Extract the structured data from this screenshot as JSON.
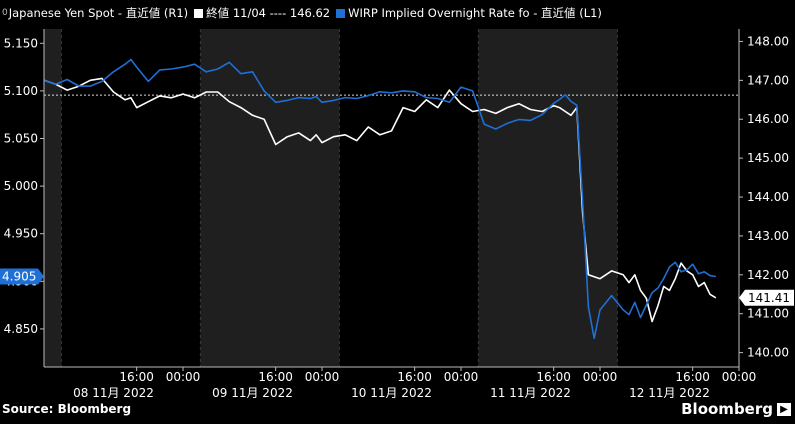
{
  "legend": {
    "marker": "0",
    "series1_label": "Japanese Yen Spot - 直近値 (R1)",
    "series2_label": "終値 11/04 ---- 146.62",
    "series3_label": "WIRP Implied Overnight Rate fo - 直近値 (L1)"
  },
  "footer": {
    "source": "Source: Bloomberg",
    "brand": "Bloomberg",
    "brand_icon": "play-icon"
  },
  "colors": {
    "yen": "#ffffff",
    "wirp": "#1e6fd6",
    "background": "#000000",
    "session_band": "#1f1f1f"
  },
  "chart_data": {
    "type": "line",
    "x_unit": "hours since 08 11月 2022 00:00 (Tokyo)",
    "xlim": [
      0,
      120
    ],
    "x_tick_labels": [
      {
        "x": 16,
        "label": "16:00"
      },
      {
        "x": 24,
        "label": "00:00"
      },
      {
        "x": 40,
        "label": "16:00"
      },
      {
        "x": 48,
        "label": "00:00"
      },
      {
        "x": 64,
        "label": "16:00"
      },
      {
        "x": 72,
        "label": "00:00"
      },
      {
        "x": 88,
        "label": "16:00"
      },
      {
        "x": 96,
        "label": "00:00"
      },
      {
        "x": 112,
        "label": "16:00"
      },
      {
        "x": 120,
        "label": "00:00"
      }
    ],
    "day_labels": [
      {
        "x": 12,
        "label": "08 11月 2022"
      },
      {
        "x": 36,
        "label": "09 11月 2022"
      },
      {
        "x": 60,
        "label": "10 11月 2022"
      },
      {
        "x": 84,
        "label": "11 11月 2022"
      },
      {
        "x": 108,
        "label": "12 11月 2022"
      }
    ],
    "session_bands": [
      [
        0,
        3
      ],
      [
        27,
        51
      ],
      [
        75,
        99
      ],
      [
        123,
        124
      ]
    ],
    "left_axis": {
      "ylim": [
        4.81,
        5.165
      ],
      "ticks": [
        5.15,
        5.1,
        5.05,
        5.0,
        4.95,
        4.9,
        4.85
      ],
      "tick_labels": [
        "5.150",
        "5.100",
        "5.050",
        "5.000",
        "4.950",
        "4.900",
        "4.850"
      ],
      "last_value": "4.905",
      "last_value_at": 4.905
    },
    "right_axis": {
      "ylim": [
        139.63,
        148.32
      ],
      "ticks": [
        148,
        147,
        146,
        145,
        144,
        143,
        142,
        141,
        140
      ],
      "tick_labels": [
        "148.00",
        "147.00",
        "146.00",
        "145.00",
        "144.00",
        "143.00",
        "142.00",
        "141.00",
        "140.00"
      ],
      "last_value": "141.41",
      "last_value_at": 141.41
    },
    "reference_line": {
      "axis": "right",
      "value": 146.62,
      "label": "終値 11/04"
    },
    "series": [
      {
        "axis": "right",
        "color": "#ffffff",
        "x": [
          0,
          2,
          4,
          6,
          8,
          10,
          12,
          14,
          15,
          16,
          18,
          20,
          22,
          24,
          26,
          28,
          30,
          32,
          34,
          36,
          38,
          40,
          42,
          44,
          46,
          47,
          48,
          50,
          52,
          54,
          56,
          58,
          60,
          62,
          64,
          66,
          68,
          70,
          72,
          74,
          76,
          78,
          80,
          82,
          84,
          86,
          88,
          89,
          90,
          91,
          92,
          93,
          94,
          96,
          98,
          100,
          101,
          102,
          103,
          104,
          105,
          106,
          107,
          108,
          109,
          110,
          111,
          112,
          113,
          114,
          115,
          116
        ],
        "y": [
          147.0,
          146.9,
          146.75,
          146.85,
          147.0,
          147.05,
          146.7,
          146.5,
          146.55,
          146.3,
          146.45,
          146.6,
          146.55,
          146.65,
          146.55,
          146.7,
          146.7,
          146.45,
          146.3,
          146.1,
          146.0,
          145.35,
          145.55,
          145.65,
          145.45,
          145.6,
          145.4,
          145.55,
          145.6,
          145.45,
          145.8,
          145.6,
          145.7,
          146.3,
          146.2,
          146.5,
          146.3,
          146.75,
          146.4,
          146.2,
          146.25,
          146.15,
          146.3,
          146.4,
          146.25,
          146.2,
          146.35,
          146.3,
          146.2,
          146.1,
          146.3,
          143.6,
          142.0,
          141.9,
          142.1,
          142.0,
          141.8,
          142.0,
          141.6,
          141.4,
          140.8,
          141.2,
          141.7,
          141.6,
          141.9,
          142.3,
          142.1,
          142.0,
          141.7,
          141.8,
          141.5,
          141.41
        ]
      },
      {
        "axis": "left",
        "color": "#1e6fd6",
        "x": [
          0,
          2,
          4,
          6,
          8,
          10,
          12,
          14,
          15,
          16,
          18,
          20,
          22,
          24,
          26,
          28,
          30,
          32,
          34,
          36,
          38,
          40,
          42,
          44,
          46,
          47,
          48,
          50,
          52,
          54,
          56,
          58,
          60,
          62,
          64,
          66,
          68,
          70,
          72,
          74,
          76,
          78,
          80,
          82,
          84,
          86,
          88,
          89,
          90,
          91,
          92,
          93,
          94,
          95,
          96,
          98,
          100,
          101,
          102,
          103,
          104,
          105,
          106,
          107,
          108,
          109,
          110,
          111,
          112,
          113,
          114,
          115,
          116
        ],
        "y": [
          5.111,
          5.107,
          5.112,
          5.105,
          5.105,
          5.11,
          5.12,
          5.128,
          5.133,
          5.125,
          5.11,
          5.122,
          5.123,
          5.125,
          5.128,
          5.12,
          5.123,
          5.13,
          5.118,
          5.12,
          5.1,
          5.088,
          5.09,
          5.093,
          5.092,
          5.094,
          5.088,
          5.09,
          5.093,
          5.092,
          5.095,
          5.099,
          5.098,
          5.1,
          5.099,
          5.093,
          5.092,
          5.088,
          5.104,
          5.1,
          5.065,
          5.06,
          5.066,
          5.07,
          5.069,
          5.075,
          5.087,
          5.091,
          5.096,
          5.089,
          5.085,
          4.985,
          4.873,
          4.84,
          4.87,
          4.885,
          4.87,
          4.865,
          4.878,
          4.862,
          4.875,
          4.888,
          4.893,
          4.903,
          4.915,
          4.92,
          4.91,
          4.912,
          4.918,
          4.908,
          4.91,
          4.906,
          4.905
        ]
      }
    ]
  }
}
